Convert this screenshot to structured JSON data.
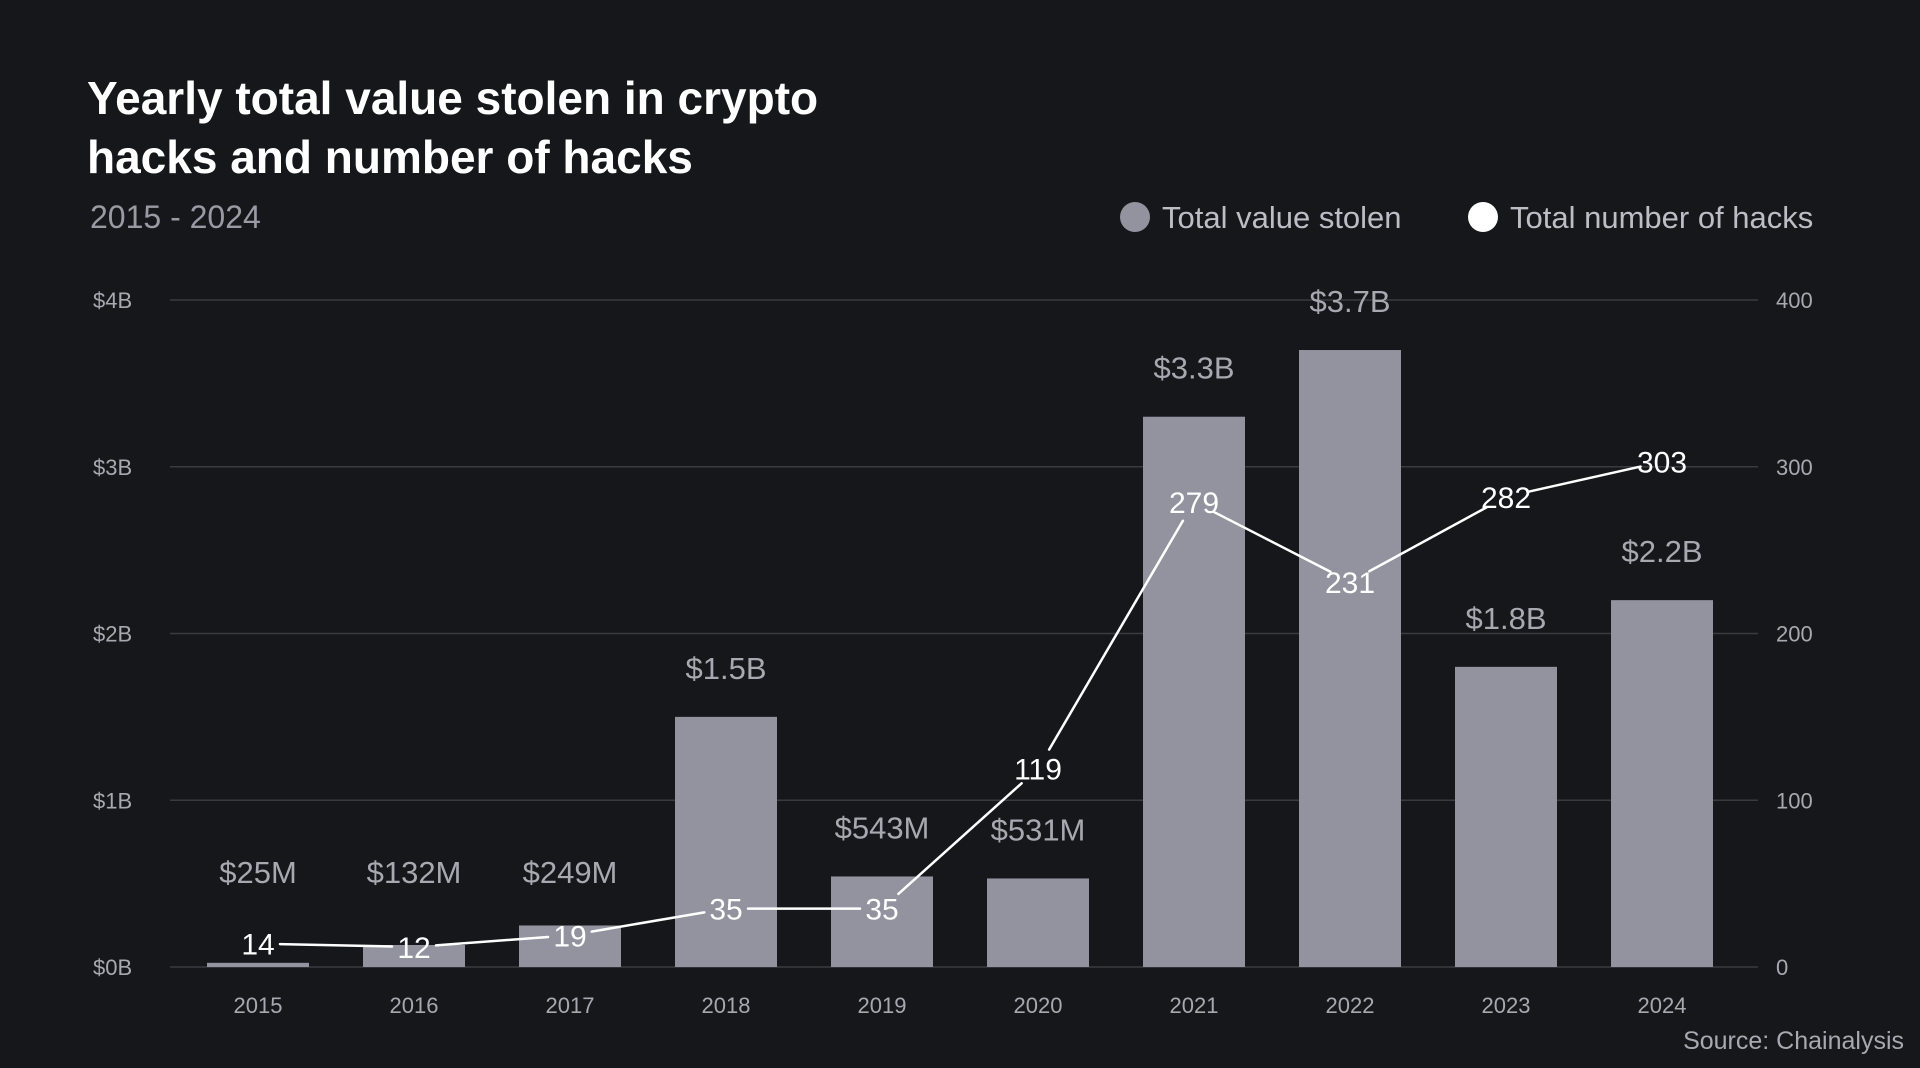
{
  "header": {
    "title_line1": "Yearly total value stolen in crypto",
    "title_line2": "hacks and number of hacks",
    "subtitle": "2015 - 2024"
  },
  "legend": {
    "value_label": "Total value stolen",
    "count_label": "Total number of hacks"
  },
  "source": "Source: Chainalysis",
  "colors": {
    "background": "#16171b",
    "bar": "#9393a0",
    "line": "#ffffff",
    "grid": "#3a3b42"
  },
  "chart_data": {
    "type": "bar",
    "categories": [
      "2015",
      "2016",
      "2017",
      "2018",
      "2019",
      "2020",
      "2021",
      "2022",
      "2023",
      "2024"
    ],
    "series": [
      {
        "name": "Total value stolen",
        "type": "bar",
        "axis": "left",
        "values": [
          0.025,
          0.132,
          0.249,
          1.5,
          0.543,
          0.531,
          3.3,
          3.7,
          1.8,
          2.2
        ],
        "labels": [
          "$25M",
          "$132M",
          "$249M",
          "$1.5B",
          "$543M",
          "$531M",
          "$3.3B",
          "$3.7B",
          "$1.8B",
          "$2.2B"
        ]
      },
      {
        "name": "Total number of hacks",
        "type": "line",
        "axis": "right",
        "values": [
          14,
          12,
          19,
          35,
          35,
          119,
          279,
          231,
          282,
          303
        ]
      }
    ],
    "left_axis": {
      "ylim": [
        0,
        4
      ],
      "ticks": [
        0,
        1,
        2,
        3,
        4
      ],
      "tick_labels": [
        "$0B",
        "$1B",
        "$2B",
        "$3B",
        "$4B"
      ]
    },
    "right_axis": {
      "ylim": [
        0,
        400
      ],
      "ticks": [
        0,
        100,
        200,
        300,
        400
      ],
      "tick_labels": [
        "0",
        "100",
        "200",
        "300",
        "400"
      ]
    },
    "grid": true,
    "legend_position": "top-right"
  }
}
